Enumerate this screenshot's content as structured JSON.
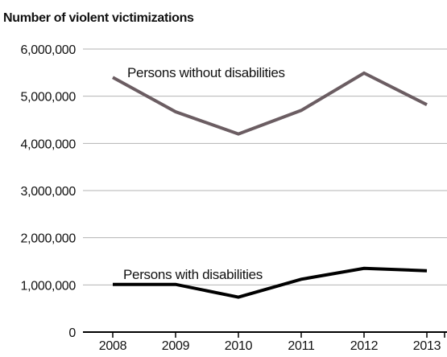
{
  "chart_data": {
    "type": "line",
    "title": "",
    "xlabel": "",
    "ylabel": "Number of violent victimizations",
    "x": [
      "2008",
      "2009",
      "2010",
      "2011",
      "2012",
      "2013"
    ],
    "ylim": [
      0,
      6000000
    ],
    "yticks": [
      0,
      1000000,
      2000000,
      3000000,
      4000000,
      5000000,
      6000000
    ],
    "ytick_labels": [
      "0",
      "1,000,000",
      "2,000,000",
      "3,000,000",
      "4,000,000",
      "5,000,000",
      "6,000,000"
    ],
    "grid": true,
    "series": [
      {
        "name": "Persons without disabilities",
        "values": [
          5400000,
          4670000,
          4200000,
          4700000,
          5490000,
          4820000
        ],
        "color": "#6b5d62"
      },
      {
        "name": "Persons with disabilities",
        "values": [
          1010000,
          1010000,
          740000,
          1120000,
          1350000,
          1300000
        ],
        "color": "#000000"
      }
    ]
  }
}
